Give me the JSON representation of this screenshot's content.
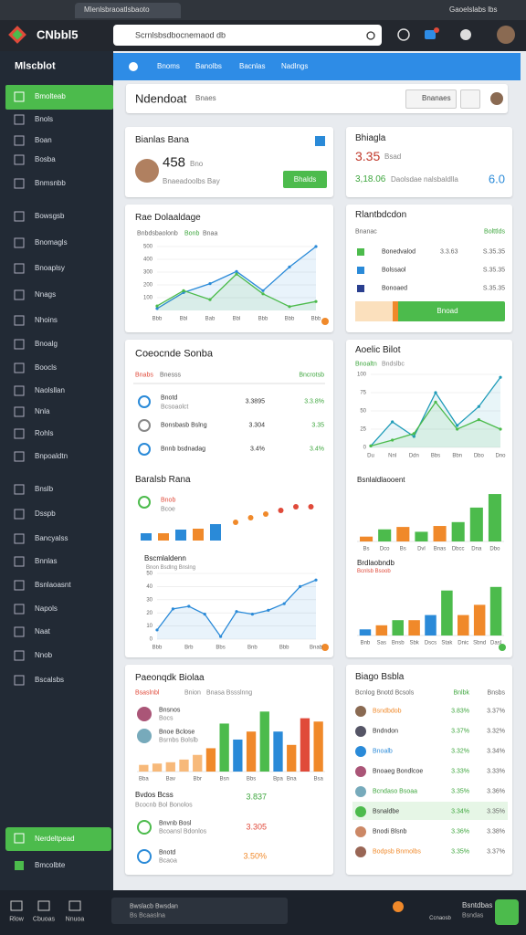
{
  "browser": {
    "tab": "Mlenlsbraoatlsbaoto",
    "user": "Gaoelslabs lbs"
  },
  "app": {
    "logo": "CNbbl5",
    "search": "Scrnlsbsdbocnemaod db"
  },
  "sidebar": {
    "title": "Mlscblot",
    "items": [
      "Bmolteab",
      "Bnols",
      "Boan",
      "Bosba",
      "Bnmsnbb",
      "Bowsgsb",
      "Bnomagls",
      "Bnoaplsy",
      "Nnags",
      "Nhoins",
      "Bnoalg",
      "Boocls",
      "Naolsllan",
      "Nnla",
      "Rohls",
      "Bnpoaldtn",
      "Bnslb",
      "Dsspb",
      "Bancyalss",
      "Bnnlas",
      "Bsnlaoasnt",
      "Napols",
      "Naat",
      "Nnob",
      "Bscalsbs"
    ],
    "footer": [
      "Nerdeltpead",
      "Bmcolbte"
    ]
  },
  "nav": [
    "Bnoms",
    "Banolbs",
    "Bacnlas",
    "Nadlngs"
  ],
  "header": {
    "title": "Ndendoat",
    "subtitle": "Bnaes",
    "button": "Bnanaes"
  },
  "summary": {
    "title": "Bianlas Bana",
    "value": "458",
    "unit": "Bno",
    "note": "Bnaeadoolbs Bay",
    "button": "Bhalds"
  },
  "stats": {
    "title": "Bhiagla",
    "value": "3.35",
    "unit": "Bsad",
    "total": "3,18.06",
    "note": "Daolsdae nalsbaldlla",
    "metric": "6.0"
  },
  "trend": {
    "title": "Rae Dolaaldage",
    "legend": [
      "Bnbdsbaolonb",
      "Bonb",
      "Bnaa"
    ],
    "chart": {
      "ylim": [
        0,
        500
      ],
      "yticks": [
        100,
        200,
        300,
        400,
        500
      ],
      "categories": [
        "Bbb",
        "Bbl",
        "Bab",
        "Bbl",
        "Bbb",
        "Bbb",
        "Bbb"
      ],
      "area": true,
      "series": [
        {
          "color": "#2a8ad8",
          "values": [
            15,
            140,
            210,
            305,
            155,
            340,
            500
          ]
        },
        {
          "color": "#4cbb4c",
          "values": [
            35,
            155,
            85,
            285,
            130,
            30,
            70
          ]
        }
      ]
    }
  },
  "ranking": {
    "title": "Rlantbdcdon",
    "columns": [
      "Bnanac",
      "Bolttlds"
    ],
    "rows": [
      {
        "name": "Bonedvalod",
        "color": "#4cbb4c",
        "values": [
          "3.3.63",
          "S.35.35"
        ]
      },
      {
        "name": "Bolssaol",
        "color": "#2a8ad8",
        "values": [
          "S.35.35"
        ]
      },
      {
        "name": "Bonoaed",
        "color": "#2a3f8f",
        "values": [
          "S.35.35"
        ]
      }
    ],
    "button": "Bnoad"
  },
  "sources": {
    "title": "Coeocnde Sonba",
    "tabs": [
      "Bnabs",
      "Bnesss",
      "Bncrotsb"
    ],
    "rows": [
      {
        "name": "Bnotd",
        "sub": "Bcsoaolct",
        "values": [
          "3.3895",
          "3.3.8%"
        ]
      },
      {
        "name": "Bonsbasb Bslng",
        "values": [
          "3.304",
          "3.35"
        ]
      },
      {
        "name": "Bnnb bsdnadag",
        "values": [
          "3.4%",
          "3.4%"
        ]
      }
    ],
    "mix": {
      "title": "Baralsb Rana",
      "legend": [
        "Bnob",
        "Bcoe"
      ],
      "ylim": [
        0,
        60
      ],
      "bars": {
        "values": [
          8,
          8,
          12,
          13,
          18
        ],
        "colors": [
          "#2a8ad8",
          "#f0892a",
          "#2a8ad8",
          "#f0892a",
          "#2a8ad8"
        ]
      },
      "dots": {
        "values": [
          20,
          25,
          29,
          33,
          37,
          37
        ],
        "colors": [
          "#f0892a",
          "#f0892a",
          "#f0892a",
          "#e04a3a",
          "#e04a3a",
          "#e04a3a"
        ]
      }
    },
    "flow": {
      "title": "Bscmlaldenn",
      "legend": "Bnon Bsdlng Bnslng",
      "ylim": [
        0,
        50
      ],
      "yticks": [
        0,
        10,
        20,
        30,
        40,
        50
      ],
      "area": true,
      "categories": [
        "Bbb",
        null,
        "Brb",
        null,
        "Bbs",
        null,
        "Bnb",
        null,
        "Bbb",
        null,
        "Bnab"
      ],
      "series": [
        {
          "color": "#2a8ad8",
          "values": [
            7,
            23,
            25,
            19,
            2,
            21,
            19,
            22,
            27,
            40,
            45
          ]
        }
      ]
    }
  },
  "pilot": {
    "title": "Aoelic Bilot",
    "legend": [
      "Bnoaltn",
      "Bndslbc"
    ],
    "chart": {
      "ylim": [
        0,
        100
      ],
      "yticks": [
        0,
        25,
        50,
        75,
        100
      ],
      "categories": [
        "Du",
        "Nnl",
        "Ddn",
        "Bbs",
        "Bbn",
        "Dbo",
        "Dno"
      ],
      "area": true,
      "series": [
        {
          "color": "#1e9bb8",
          "values": [
            2,
            35,
            15,
            75,
            30,
            56,
            96
          ]
        },
        {
          "color": "#4cbb4c",
          "values": [
            2,
            10,
            19,
            62,
            25,
            38,
            25
          ]
        }
      ]
    },
    "bars1": {
      "title": "Bsnlaldlaooent",
      "ylim": [
        0,
        100
      ],
      "categories": [
        "Bs",
        "Dco",
        "Bs",
        "Dvl",
        "Bnas",
        "Dbcc",
        "Dna",
        "Dbo"
      ],
      "values": [
        10,
        25,
        30,
        20,
        32,
        40,
        70,
        98
      ],
      "colors": [
        "#f0892a",
        "#4cbb4c",
        "#f0892a",
        "#4cbb4c",
        "#f0892a",
        "#4cbb4c",
        "#4cbb4c",
        "#4cbb4c"
      ]
    },
    "bars2": {
      "title": "Brdlaobndb",
      "legend": "Bcnlsb Bsoob",
      "ylim": [
        0,
        100
      ],
      "categories": [
        "Bnb",
        "Sas",
        "Bnsb",
        "Sbk",
        "Dscs",
        "Stak",
        "Dnic",
        "Sbnd",
        "Dasl"
      ],
      "values": [
        12,
        20,
        30,
        30,
        40,
        88,
        40,
        60,
        95
      ],
      "colors": [
        "#2a8ad8",
        "#f0892a",
        "#4cbb4c",
        "#f0892a",
        "#2a8ad8",
        "#4cbb4c",
        "#f0892a",
        "#f0892a",
        "#4cbb4c"
      ]
    }
  },
  "progress": {
    "title": "Paeonqdk Biolaa",
    "tabs": [
      "Bsaslnbl",
      "Bnion",
      "Bnasa Bssslnng"
    ],
    "people": [
      {
        "name": "Bnsnos",
        "sub": "Bocs"
      },
      {
        "name": "Bnoe Bclose",
        "sub": "Bsrnbs Bolslb"
      }
    ],
    "chart": {
      "ylim": [
        0,
        100
      ],
      "categories": [
        "Bba",
        null,
        "Bav",
        null,
        "Bbr",
        null,
        "Bsn",
        null,
        "Bbs",
        null,
        "Bpa",
        "Bna",
        null,
        "Bsa"
      ],
      "values": [
        10,
        12,
        14,
        18,
        25,
        35,
        72,
        48,
        60,
        90,
        60,
        40,
        80,
        75
      ],
      "colors": [
        "#f7b97a",
        "#f7b97a",
        "#f7b97a",
        "#f7b97a",
        "#f7b97a",
        "#f0892a",
        "#4cbb4c",
        "#2a8ad8",
        "#f0892a",
        "#4cbb4c",
        "#2a8ad8",
        "#f0892a",
        "#e04a3a",
        "#f0892a"
      ]
    },
    "summary": {
      "title": "Bvdos Bcss",
      "value": "3.837",
      "sub": "Bcocnb Bol Bonolos"
    },
    "rows": [
      {
        "name": "Bnvnb Bosl",
        "sub": "Bcoansl Bdonlos",
        "value": "3.305",
        "color": "#e04a3a"
      },
      {
        "name": "Bnotd",
        "sub": "Bcaoa",
        "value": "3.50%",
        "color": "#f0892a"
      }
    ]
  },
  "board": {
    "title": "Biago Bsbla",
    "columns": [
      "Bcnlog Bnotd Bcsols",
      "Bnlbk",
      "Bnsbs"
    ],
    "rows": [
      [
        "Bsndbdob",
        "3.83%",
        "3.37%"
      ],
      [
        "Bndndon",
        "3.37%",
        "3.32%"
      ],
      [
        "Bnoalb",
        "3.32%",
        "3.34%"
      ],
      [
        "Bnoaeg Bondlcoe",
        "3.33%",
        "3.33%"
      ],
      [
        "Bcndaso Bsoaa",
        "3.35%",
        "3.36%"
      ],
      [
        "Bsnaldbe",
        "3.34%",
        "3.35%"
      ],
      [
        "Bnodi Blsnb",
        "3.36%",
        "3.38%"
      ],
      [
        "Bodpsb Bnmolbs",
        "3.35%",
        "3.37%"
      ]
    ]
  },
  "footer": {
    "tabs": [
      "Rlow",
      "Cbuoas",
      "Nnuoa"
    ],
    "notice": [
      "Bwslacb Bwsdan",
      "Bs Bcaaslna"
    ],
    "status": "Ccnaosb",
    "info": [
      "Bsntdbas",
      "Bsndas"
    ]
  }
}
